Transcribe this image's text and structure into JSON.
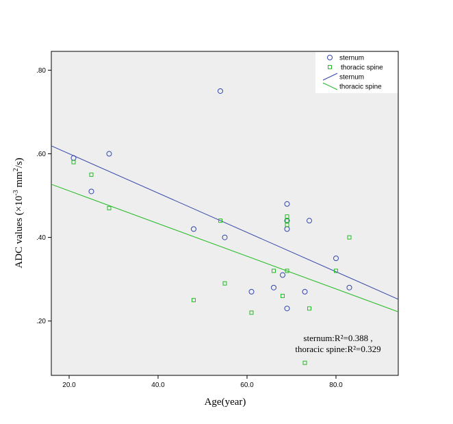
{
  "chart_data": {
    "type": "scatter",
    "xlabel": "Age(year)",
    "ylabel_main": "ADC values (×10",
    "ylabel_exp1": "-3",
    "ylabel_mid": " mm",
    "ylabel_exp2": "2",
    "ylabel_end": "/s)",
    "xlim": [
      16.0,
      94.0
    ],
    "ylim": [
      0.07,
      0.845
    ],
    "x_ticks": [
      20,
      40,
      60,
      80
    ],
    "x_tick_labels": [
      "20.0",
      "40.0",
      "60.0",
      "80.0"
    ],
    "y_ticks": [
      0.2,
      0.4,
      0.6,
      0.8
    ],
    "y_tick_labels": [
      ".20",
      ".40",
      ".60",
      ".80"
    ],
    "grid": false,
    "legend_position": "top-right",
    "colors": {
      "sternum": "#3344aa",
      "thoracic_spine": "#22bb22",
      "plot_bg": "#eeeeee"
    },
    "series": [
      {
        "name": "sternum",
        "marker": "circle",
        "points": [
          [
            21,
            0.59
          ],
          [
            25,
            0.51
          ],
          [
            29,
            0.6
          ],
          [
            48,
            0.42
          ],
          [
            54,
            0.75
          ],
          [
            55,
            0.4
          ],
          [
            61,
            0.27
          ],
          [
            66,
            0.28
          ],
          [
            68,
            0.31
          ],
          [
            69,
            0.48
          ],
          [
            69,
            0.44
          ],
          [
            69,
            0.42
          ],
          [
            69,
            0.23
          ],
          [
            73,
            0.27
          ],
          [
            74,
            0.44
          ],
          [
            80,
            0.35
          ],
          [
            83,
            0.28
          ]
        ]
      },
      {
        "name": "thoracic spine",
        "marker": "square",
        "points": [
          [
            21,
            0.58
          ],
          [
            25,
            0.55
          ],
          [
            29,
            0.47
          ],
          [
            48,
            0.25
          ],
          [
            54,
            0.44
          ],
          [
            55,
            0.29
          ],
          [
            61,
            0.22
          ],
          [
            66,
            0.32
          ],
          [
            68,
            0.26
          ],
          [
            69,
            0.45
          ],
          [
            69,
            0.44
          ],
          [
            69,
            0.43
          ],
          [
            69,
            0.32
          ],
          [
            73,
            0.1
          ],
          [
            74,
            0.23
          ],
          [
            80,
            0.32
          ],
          [
            83,
            0.4
          ]
        ]
      }
    ],
    "fit_lines": [
      {
        "name": "sternum",
        "x": [
          16.0,
          94.0
        ],
        "y": [
          0.619,
          0.252
        ]
      },
      {
        "name": "thoracic spine",
        "x": [
          16.0,
          94.0
        ],
        "y": [
          0.527,
          0.222
        ]
      }
    ],
    "legend": [
      {
        "label": "sternum",
        "kind": "circle"
      },
      {
        "label": "thoracic spine",
        "kind": "square"
      },
      {
        "label": "sternum",
        "kind": "line-sternum"
      },
      {
        "label": "thoracic spine",
        "kind": "line-spine"
      }
    ],
    "annotation_lines": [
      "sternum:R²=0.388 ,",
      "thoracic spine:R²=0.329"
    ]
  }
}
